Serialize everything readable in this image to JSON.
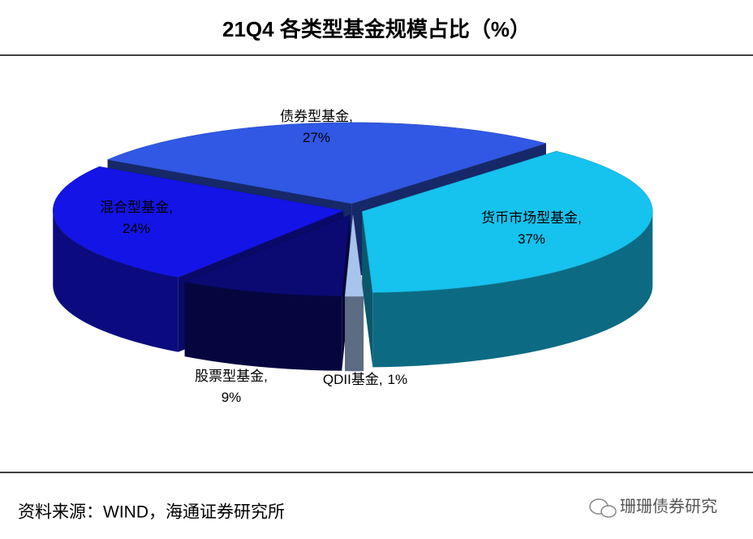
{
  "chart_data": {
    "type": "pie3d",
    "title": "21Q4 各类型基金规模占比（%）",
    "categories": [
      "货币市场型基金,",
      "QDII基金,",
      "股票型基金,",
      "混合型基金,",
      "债券型基金,"
    ],
    "values": [
      37,
      1,
      9,
      24,
      27
    ],
    "value_labels": [
      "37%",
      "1%",
      "9%",
      "24%",
      "27%"
    ],
    "colors": [
      "#16c2ee",
      "#a8c4ec",
      "#0a0a72",
      "#1414e6",
      "#3058e4"
    ],
    "source": "资料来源：WIND，海通证券研究所",
    "watermark": "珊珊债券研究"
  }
}
